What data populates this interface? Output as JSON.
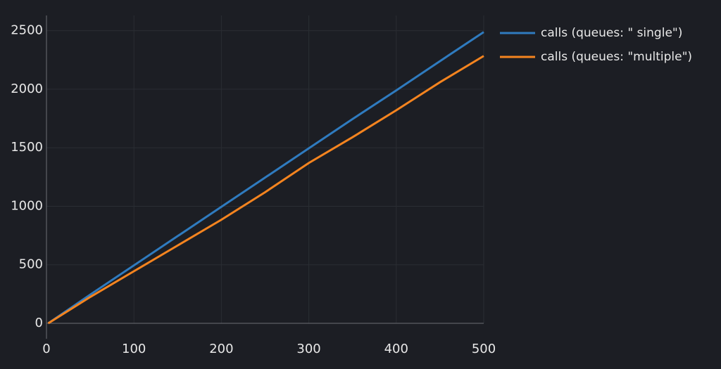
{
  "chart_data": {
    "type": "line",
    "x": [
      2,
      50,
      100,
      150,
      200,
      250,
      300,
      350,
      400,
      450,
      500
    ],
    "series": [
      {
        "name": "calls (queues: \" single\")",
        "color": "#2f7bbf",
        "values": [
          0,
          245,
          495,
          745,
          995,
          1245,
          1495,
          1745,
          1990,
          2240,
          2488
        ]
      },
      {
        "name": "calls (queues: \"multiple\")",
        "color": "#f5841f",
        "values": [
          0,
          225,
          445,
          665,
          885,
          1120,
          1370,
          1590,
          1820,
          2060,
          2284
        ]
      }
    ],
    "xlim": [
      0,
      500
    ],
    "xticks": [
      0,
      100,
      200,
      300,
      400,
      500
    ],
    "ylim": [
      0,
      2630
    ],
    "yticks": [
      0,
      500,
      1000,
      1500,
      2000,
      2500
    ],
    "grid": true,
    "legend": "right"
  }
}
